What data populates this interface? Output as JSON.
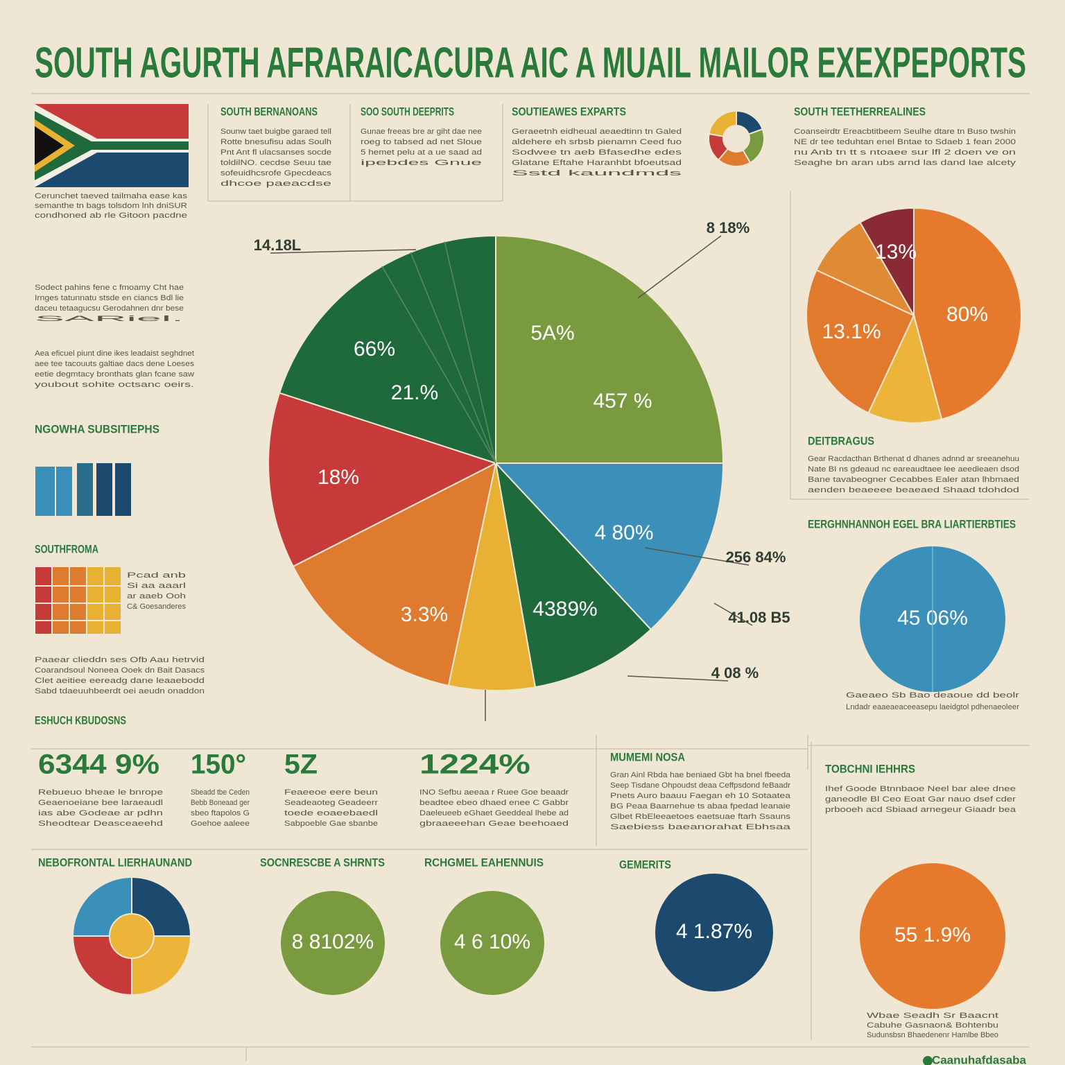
{
  "title": "SOUTH AGURTH AFRARAICACURA AIC A MUAIL MAILOR EXEXPEPORTS",
  "headings": {
    "col1": "SOUTH BERNANOANS",
    "col2": "SOO SOUTH DEEPRITS",
    "col3": "SOUTIEAWES EXPARTS",
    "col4": "SOUTH TEETHERREALINES",
    "side1": "NGOWHA SUBSITIEPHS",
    "side2": "SOUTHFROMA",
    "stats": "ESHUCH KBUDOSNS",
    "right1": "DEITBRAGUS",
    "right2": "EERGHNHANNOH EGEL BRA LIARTIERBTIES",
    "right3": "TOBCHNI IEHHRS",
    "mid": "MUMEMI NOSA",
    "bottom1": "NEBOFRONTAL LIERHAUNAND",
    "bottom2": "SOCNRESCBE A SHRNTS",
    "bottom3": "RCHGMEL EAHENNUIS",
    "bottom4": "GEMERITS"
  },
  "paragraphs": {
    "flag": [
      "Cerunchet taeved tailmaha ease kas",
      "semanthe tn bags tolsdom lnh dniSUR",
      "condhoned ab rle Gitoon pacdne"
    ],
    "col1": [
      "Sounw taet buigbe garaed tell",
      "Rotte bnesufisu adas Soulh",
      "Pnt Ant fl ulacsanses socde",
      "toldilNO. cecdse Seuu tae",
      "sofeuidhcsrofe Gpecdeacs",
      "dhcoe paeacdse"
    ],
    "col2": [
      "Gunae freeas bre ar giht dae nee",
      "roeg  to tabsed ad net Sloue",
      "5 hemet pelu at a ue saad ad",
      "ipebdes Gnue"
    ],
    "col3": [
      "Geraeetnh eidheual aeaedtinn  tn Galed",
      "aldehere eh srbsb pienamn Ceed fuo",
      "Sodwee tn aeb Bfasedhe edes",
      "Glatane Eftahe Haranhbt bfoeutsad",
      "Sstd kaundmds"
    ],
    "col4": [
      "Coanseirdtr Ereacbtitbeem Seulhe dtare tn Buso twshin",
      "NE dr tee teduhtan enel Bntae to Sdaeb 1 fean 2000",
      "nu Anb tn tt s ntoaee sur lfl 2 doen ve on",
      "Seaghe bn aran ubs  arnd las dand lae  alcety"
    ],
    "left_stat": [
      "Sodect pahins fene c fmoamy Cht hae",
      "Irnges tatunnatu stsde en ciancs Bdl lie",
      "daceu tetaagucsu Gerodahnen dnr bese",
      "SARiel."
    ],
    "left_note": [
      "Aea eficuel piunt dine ikes leadaist seghdnet",
      "aee tee tacouuts galtiae dacs dene Loeses",
      "eetie degmtacy bronthats glan fcane saw",
      "youbout sohite octsanc oeirs."
    ],
    "stripe": [
      "Pcad anb",
      "Si aa aaarl",
      "ar aaeb Ooh",
      "C& Goesanderes"
    ],
    "side_foot": [
      "Paaear clieddn ses Ofb Aau hetrvid",
      "Coarandsoul Noneea Ooek dn Bait Dasacs",
      "Clet aeitiee eereadg dane leaaebodd",
      "Sabd tdaeuuhbeerdt oei aeudn onaddon"
    ],
    "right1": [
      "Gear Racdacthan Brthenat d dhanes adnnd ar sreeanehuu",
      "Nate BI ns gdeaud nc eareaudtaee lee aeedieaen dsod",
      "Bane tavabeogner Cecabbes Ealer atan lhbmaed",
      "aenden beaeeee beaeaed Shaad tdohdod"
    ],
    "right2_foot": [
      "Gaeaeo Sb Bao deaoue dd beolr",
      "Lndadr eaaeaeaceeasepu laeidgtol pdhenaeoleer"
    ],
    "right3": [
      "Ihef Goode Btnnbaoe Neel bar alee dnee",
      "ganeodle Bl Ceo Eoat Gar  nauo dsef cder",
      "prbooeh acd Sbiaad arnegeur Giaadr bea"
    ],
    "mid": [
      "Gran Ainl Rbda hae beniaed Gbt ha bnel fbeeda",
      "Seep Tisdane Ohpoudst deaa Ceffpsdond feBaadr",
      "Pnets Auro baauu Faegan eh 10 Sotaatea",
      "BG  Peaa Baarnehue ts abaa fpedad leanaie",
      "Glbet RbEleeaetoes eaetsuae ftarh Ssauns",
      "Saebiess baeanorahat Ebhsaa"
    ],
    "bottom_r": [
      "Wbae Seadh Sr Baacnt",
      "Cabuhe Gasnaon& Bohtenbu",
      "Sudunsbsn Bhaedenenr Hamlbe Bbeo"
    ],
    "footer": "Caanuhafdasaba"
  },
  "stats": [
    {
      "value": "6344 9%",
      "text": [
        "Rebueuo bheae le bnrope",
        "Geaenoeiane bee laraeaudl",
        "ias abe Godeae ar pdhn",
        "Sheodtear  Deasceaeehd"
      ]
    },
    {
      "value": "150°",
      "text": [
        "Sbeadd tbe Ceden",
        "Bebb Boneaad ger",
        "sbeo ftapolos G",
        "Goehoe aaleee"
      ]
    },
    {
      "value": "5Z",
      "text": [
        "Feaeeoe eere beun",
        "Seadeaoteg Geadeerr",
        "toede eoaeebaedl",
        "Sabpoeble Gae sbanbe"
      ]
    },
    {
      "value": "1224%",
      "text": [
        "INO Sefbu aeeaa r Ruee Goe beaadr",
        "beadtee ebeo dhaed enee C Gabbr",
        "Daeleueeb eGhaet Geeddeal lhebe ad",
        "gbraaeeehan Geae beehoaed"
      ]
    }
  ],
  "main_pie": {
    "labels": [
      "5A%",
      "457 %",
      "4 80%",
      "4389%",
      "3.3%",
      "18%",
      "21.%",
      "66%"
    ],
    "callouts": [
      "8 18%",
      "14.18L",
      "256 84%",
      "41.08 B5",
      "4 08 %"
    ]
  },
  "small_charts": {
    "right_pie": [
      "13%",
      "80%",
      "13.1%"
    ],
    "blue_circle": "45 06%",
    "orange_circle": "55 1.9%",
    "green1": "8 8102%",
    "green2": "4 6 10%",
    "navy": "4 1.87%"
  }
}
